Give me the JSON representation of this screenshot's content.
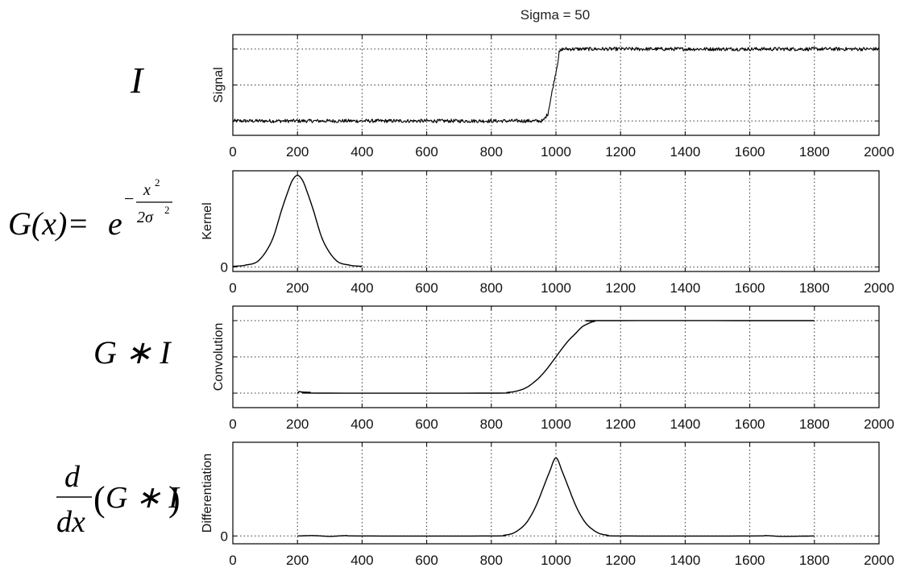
{
  "figure": {
    "title": "Sigma = 50"
  },
  "equations": {
    "eq1": {
      "I": "I"
    },
    "eq2": {
      "lhs": "G(x)",
      "eq": "=",
      "base": "e",
      "minus": "−",
      "num": "x",
      "num_exp": "2",
      "den": "2σ",
      "den_exp": "2"
    },
    "eq3": {
      "text": "G ∗ I"
    },
    "eq4": {
      "d": "d",
      "dx": "dx",
      "paren_open": "(",
      "inner": "G ∗ I",
      "paren_close": ")"
    }
  },
  "colors": {
    "line": "#000000",
    "grid": "#333333",
    "axes": "#000000",
    "background": "#ffffff"
  },
  "chart_data": [
    {
      "type": "line",
      "title": "Sigma = 50",
      "ylabel": "Signal",
      "xlim": [
        0,
        2000
      ],
      "ylim": [
        -0.2,
        1.2
      ],
      "xticks": [
        0,
        200,
        400,
        600,
        800,
        1000,
        1200,
        1400,
        1600,
        1800,
        2000
      ],
      "yticks": [
        0,
        0.5,
        1
      ],
      "ytick_labels": [
        "",
        "",
        ""
      ],
      "grid": true,
      "series": [
        {
          "x": [
            0,
            960,
            975,
            990,
            1005,
            1010,
            1020,
            2000
          ],
          "y": [
            0,
            0,
            0.1,
            0.45,
            0.8,
            0.95,
            1,
            1
          ],
          "noise": 0.025
        }
      ]
    },
    {
      "type": "line",
      "ylabel": "Kernel",
      "xlim": [
        0,
        2000
      ],
      "ylim": [
        -0.05,
        1.05
      ],
      "xticks": [
        0,
        200,
        400,
        600,
        800,
        1000,
        1200,
        1400,
        1600,
        1800,
        2000
      ],
      "yticks": [
        0
      ],
      "ytick_labels": [
        "0"
      ],
      "grid": true,
      "series": [
        {
          "x": [
            0,
            40,
            80,
            120,
            150,
            170,
            185,
            200,
            215,
            230,
            250,
            280,
            320,
            360,
            400
          ],
          "y": [
            0.006,
            0.02,
            0.07,
            0.28,
            0.61,
            0.82,
            0.95,
            1,
            0.95,
            0.82,
            0.61,
            0.28,
            0.07,
            0.02,
            0.006
          ]
        }
      ]
    },
    {
      "type": "line",
      "ylabel": "Convolution",
      "xlim": [
        0,
        2000
      ],
      "ylim": [
        -0.2,
        1.2
      ],
      "xticks": [
        0,
        200,
        400,
        600,
        800,
        1000,
        1200,
        1400,
        1600,
        1800,
        2000
      ],
      "yticks": [
        0,
        0.5,
        1
      ],
      "ytick_labels": [
        "",
        "",
        ""
      ],
      "grid": true,
      "series": [
        {
          "x": [
            200,
            205,
            215,
            240,
            260,
            800,
            850,
            880,
            910,
            940,
            960,
            980,
            1000,
            1020,
            1040,
            1060,
            1080,
            1100,
            1120,
            1150,
            1800
          ],
          "y": [
            0,
            0.02,
            0.015,
            0.01,
            0,
            0,
            0.01,
            0.03,
            0.08,
            0.18,
            0.27,
            0.38,
            0.5,
            0.62,
            0.73,
            0.82,
            0.91,
            0.96,
            0.99,
            1,
            1
          ]
        }
      ]
    },
    {
      "type": "line",
      "ylabel": "Differentiation",
      "xlim": [
        0,
        2000
      ],
      "ylim": [
        -0.1,
        1.2
      ],
      "xticks": [
        0,
        200,
        400,
        600,
        800,
        1000,
        1200,
        1400,
        1600,
        1800,
        2000
      ],
      "yticks": [
        0
      ],
      "ytick_labels": [
        "0"
      ],
      "grid": true,
      "series": [
        {
          "x": [
            200,
            250,
            300,
            350,
            400,
            800,
            840,
            870,
            900,
            920,
            940,
            960,
            980,
            1000,
            1020,
            1040,
            1060,
            1080,
            1100,
            1130,
            1160,
            1200,
            1600,
            1650,
            1700,
            1800
          ],
          "y": [
            0,
            0.005,
            -0.005,
            0.005,
            0,
            0,
            0.01,
            0.04,
            0.13,
            0.24,
            0.4,
            0.61,
            0.82,
            1,
            0.82,
            0.61,
            0.4,
            0.24,
            0.13,
            0.04,
            0.01,
            0,
            0,
            0.005,
            -0.005,
            0
          ]
        }
      ]
    }
  ]
}
